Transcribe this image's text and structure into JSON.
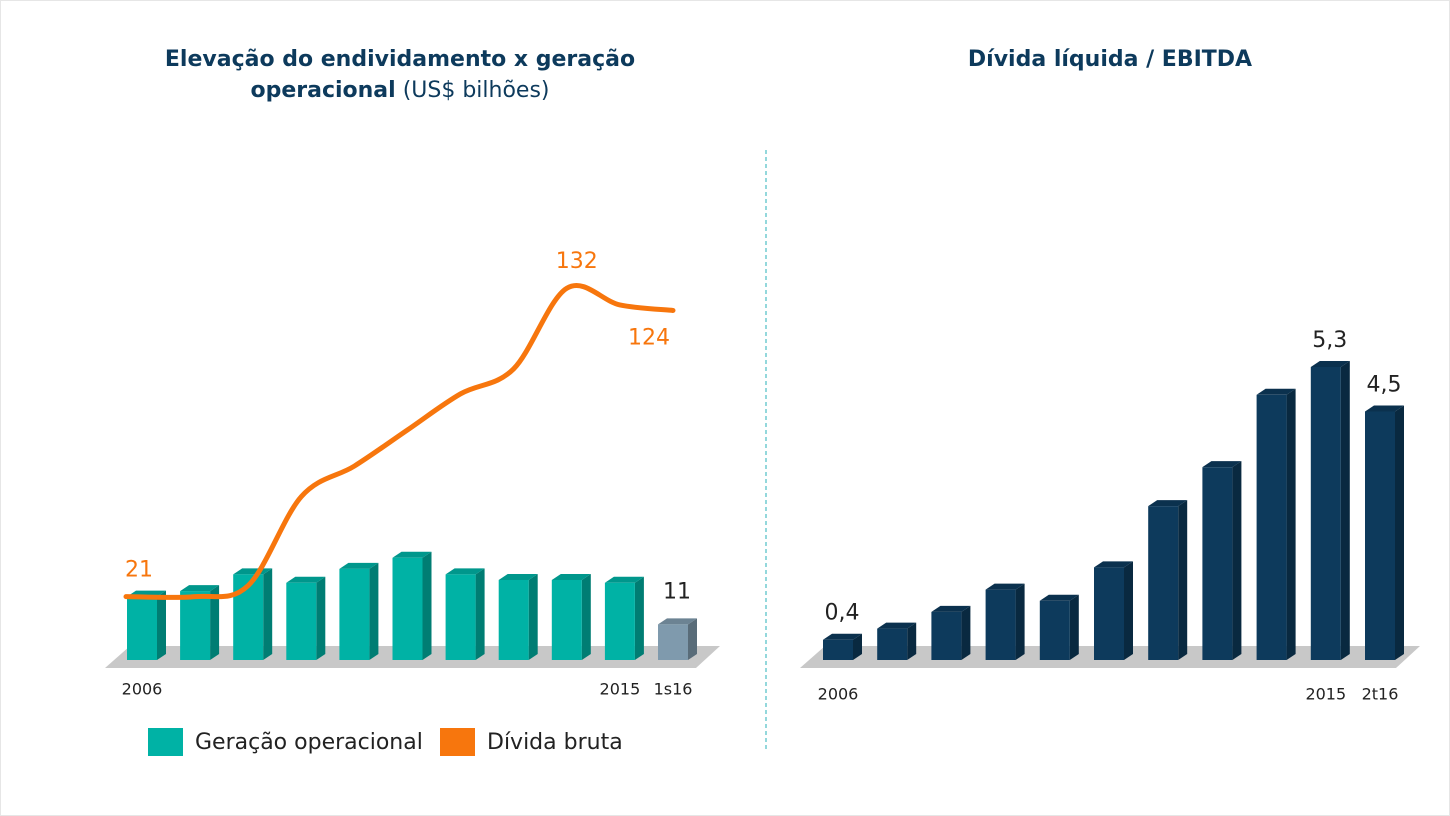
{
  "chart_data": [
    {
      "type": "bar_line",
      "title": "Elevação do endividamento x geração operacional",
      "subtitle": "(US$ bilhões)",
      "categories": [
        "2006",
        null,
        null,
        null,
        null,
        null,
        null,
        null,
        null,
        "2015",
        "1s16"
      ],
      "ylim": [
        0,
        140
      ],
      "series": [
        {
          "name": "Geração operacional",
          "color": "#00b2a5",
          "kind": "bar",
          "colors": [
            "#00b2a5",
            "#00b2a5",
            "#00b2a5",
            "#00b2a5",
            "#00b2a5",
            "#00b2a5",
            "#00b2a5",
            "#00b2a5",
            "#00b2a5",
            "#00b2a5",
            "#7f9aad"
          ],
          "values": [
            21,
            23,
            29,
            26,
            31,
            35,
            29,
            27,
            27,
            26,
            11
          ],
          "labeled_points": [
            10
          ]
        },
        {
          "name": "Dívida bruta",
          "color": "#f7760d",
          "kind": "line",
          "values": [
            21,
            21,
            25,
            57,
            68,
            81,
            94,
            103,
            132,
            126,
            124
          ],
          "labeled_points": [
            0,
            8,
            10
          ]
        }
      ]
    },
    {
      "type": "bar",
      "title": "Dívida líquida / EBITDA",
      "categories": [
        "2006",
        null,
        null,
        null,
        null,
        null,
        null,
        null,
        null,
        "2015",
        "2t16"
      ],
      "ylim": [
        0,
        6
      ],
      "color": "#0d3a5c",
      "values": [
        0.4,
        0.6,
        0.9,
        1.3,
        1.1,
        1.7,
        2.8,
        3.5,
        4.8,
        5.3,
        4.5
      ],
      "value_labels": [
        "0,4",
        null,
        null,
        null,
        null,
        null,
        null,
        null,
        null,
        "5,3",
        "4,5"
      ]
    }
  ]
}
